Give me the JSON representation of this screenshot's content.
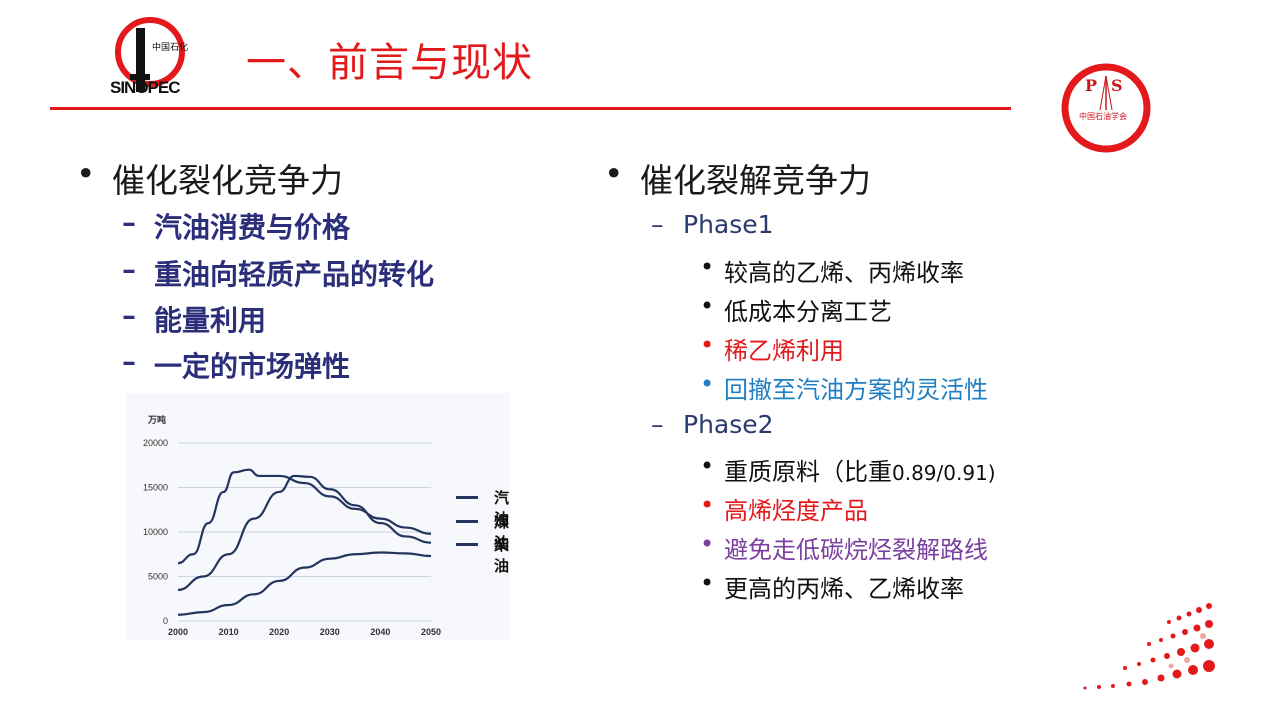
{
  "header": {
    "title": "一、前言与现状",
    "logo_left_text": "SINOPEC",
    "logo_left_cn": "中国石化",
    "logo_right_letters": "PS",
    "logo_right_cn": "中国石油学会"
  },
  "left": {
    "heading": "催化裂化竞争力",
    "items": [
      "汽油消费与价格",
      "重油向轻质产品的转化",
      "能量利用",
      "一定的市场弹性"
    ]
  },
  "right": {
    "heading": "催化裂解竞争力",
    "phase1": {
      "label": "Phase1",
      "items": [
        {
          "text": "较高的乙烯、丙烯收率",
          "color": "#111111"
        },
        {
          "text": "低成本分离工艺",
          "color": "#111111"
        },
        {
          "text": "稀乙烯利用",
          "color": "#e3191b"
        },
        {
          "text": "回撤至汽油方案的灵活性",
          "color": "#1f7fc4"
        }
      ]
    },
    "phase2": {
      "label": "Phase2",
      "items": [
        {
          "text": "重质原料（比重",
          "suffix": "0.89/0.91)",
          "color": "#111111"
        },
        {
          "text": "高烯烃度产品",
          "color": "#e3191b"
        },
        {
          "text": "避免走低碳烷烃裂解路线",
          "color": "#7b3fa0"
        },
        {
          "text": "更高的丙烯、乙烯收率",
          "color": "#111111"
        }
      ]
    }
  },
  "chart_data": {
    "type": "line",
    "ylabel": "万吨",
    "ylim": [
      0,
      20000
    ],
    "yticks": [
      0,
      5000,
      10000,
      15000,
      20000
    ],
    "xlim": [
      2000,
      2050
    ],
    "xticks": [
      2000,
      2010,
      2020,
      2030,
      2040,
      2050
    ],
    "series": [
      {
        "name": "汽油",
        "x": [
          2000,
          2003,
          2006,
          2009,
          2011,
          2014,
          2016,
          2020,
          2025,
          2030,
          2035,
          2040,
          2045,
          2050
        ],
        "values": [
          6500,
          7500,
          11000,
          14500,
          16700,
          17000,
          16300,
          16300,
          15500,
          14000,
          12600,
          11500,
          10500,
          9800
        ]
      },
      {
        "name": "煤油",
        "x": [
          2000,
          2005,
          2010,
          2015,
          2020,
          2023,
          2026,
          2030,
          2035,
          2040,
          2045,
          2050
        ],
        "values": [
          3500,
          5000,
          7500,
          11500,
          14500,
          16300,
          16200,
          14800,
          13000,
          11000,
          9500,
          8800
        ]
      },
      {
        "name": "柴油",
        "x": [
          2000,
          2005,
          2010,
          2015,
          2020,
          2025,
          2030,
          2035,
          2040,
          2045,
          2050
        ],
        "values": [
          700,
          1000,
          1800,
          3000,
          4500,
          6000,
          7000,
          7500,
          7700,
          7600,
          7300
        ]
      }
    ]
  },
  "colors": {
    "accent": "#e3191b",
    "navy": "#2b2f7a",
    "chart_line": "#23345f"
  }
}
